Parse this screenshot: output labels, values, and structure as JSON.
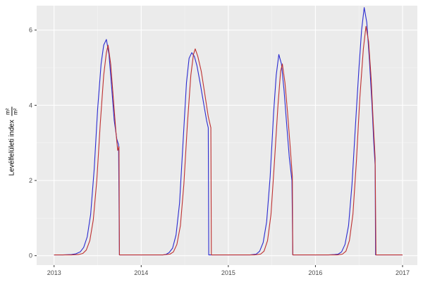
{
  "chart_data": {
    "type": "line",
    "title": "",
    "xlabel": "",
    "ylabel": "Levélfelületi index",
    "ylabel_unit_numerator": "m²",
    "ylabel_unit_denominator": "m²",
    "x_range": [
      2012.8,
      2017.17
    ],
    "y_range": [
      -0.25,
      6.65
    ],
    "x_ticks": [
      "2013",
      "2014",
      "2015",
      "2016",
      "2017"
    ],
    "x_tick_values": [
      2013,
      2014,
      2015,
      2016,
      2017
    ],
    "y_ticks": [
      "0",
      "2",
      "4",
      "6"
    ],
    "y_tick_values": [
      0,
      2,
      4,
      6
    ],
    "x_minor_values": [
      2013.5,
      2014.5,
      2015.5,
      2016.5
    ],
    "y_minor_values": [
      1,
      3,
      5
    ],
    "grid": true,
    "legend": "none",
    "panel_bg": "#EBEBEB",
    "grid_major_color": "#FFFFFF",
    "grid_minor_color": "#F5F5F5",
    "tick_label_color": "#4D4D4D",
    "tick_mark_color": "#333333",
    "series": [
      {
        "name": "series-blue",
        "color": "#2A2AD0",
        "points": [
          [
            2013.0,
            0.02
          ],
          [
            2013.1,
            0.02
          ],
          [
            2013.2,
            0.03
          ],
          [
            2013.25,
            0.05
          ],
          [
            2013.3,
            0.1
          ],
          [
            2013.34,
            0.22
          ],
          [
            2013.38,
            0.5
          ],
          [
            2013.42,
            1.1
          ],
          [
            2013.46,
            2.3
          ],
          [
            2013.5,
            3.9
          ],
          [
            2013.54,
            5.1
          ],
          [
            2013.57,
            5.6
          ],
          [
            2013.6,
            5.75
          ],
          [
            2013.63,
            5.35
          ],
          [
            2013.66,
            4.5
          ],
          [
            2013.69,
            3.6
          ],
          [
            2013.72,
            3.1
          ],
          [
            2013.74,
            2.95
          ],
          [
            2013.75,
            0.02
          ],
          [
            2013.85,
            0.02
          ],
          [
            2013.95,
            0.02
          ],
          [
            2014.05,
            0.02
          ],
          [
            2014.15,
            0.02
          ],
          [
            2014.25,
            0.02
          ],
          [
            2014.28,
            0.03
          ],
          [
            2014.32,
            0.08
          ],
          [
            2014.36,
            0.2
          ],
          [
            2014.4,
            0.55
          ],
          [
            2014.44,
            1.4
          ],
          [
            2014.48,
            3.0
          ],
          [
            2014.52,
            4.6
          ],
          [
            2014.55,
            5.25
          ],
          [
            2014.58,
            5.4
          ],
          [
            2014.61,
            5.3
          ],
          [
            2014.64,
            5.05
          ],
          [
            2014.68,
            4.55
          ],
          [
            2014.72,
            4.0
          ],
          [
            2014.75,
            3.6
          ],
          [
            2014.77,
            3.4
          ],
          [
            2014.775,
            0.02
          ],
          [
            2014.85,
            0.02
          ],
          [
            2014.95,
            0.02
          ],
          [
            2015.05,
            0.02
          ],
          [
            2015.15,
            0.02
          ],
          [
            2015.25,
            0.02
          ],
          [
            2015.32,
            0.04
          ],
          [
            2015.36,
            0.12
          ],
          [
            2015.4,
            0.35
          ],
          [
            2015.44,
            0.9
          ],
          [
            2015.48,
            2.1
          ],
          [
            2015.52,
            3.8
          ],
          [
            2015.55,
            4.8
          ],
          [
            2015.58,
            5.35
          ],
          [
            2015.61,
            5.1
          ],
          [
            2015.64,
            4.4
          ],
          [
            2015.67,
            3.5
          ],
          [
            2015.7,
            2.6
          ],
          [
            2015.73,
            2.0
          ],
          [
            2015.74,
            0.02
          ],
          [
            2015.85,
            0.02
          ],
          [
            2015.95,
            0.02
          ],
          [
            2016.05,
            0.02
          ],
          [
            2016.15,
            0.02
          ],
          [
            2016.22,
            0.03
          ],
          [
            2016.26,
            0.04
          ],
          [
            2016.3,
            0.1
          ],
          [
            2016.34,
            0.3
          ],
          [
            2016.38,
            0.8
          ],
          [
            2016.42,
            1.9
          ],
          [
            2016.46,
            3.5
          ],
          [
            2016.5,
            5.0
          ],
          [
            2016.53,
            6.0
          ],
          [
            2016.56,
            6.6
          ],
          [
            2016.59,
            6.2
          ],
          [
            2016.62,
            5.2
          ],
          [
            2016.65,
            4.0
          ],
          [
            2016.67,
            3.0
          ],
          [
            2016.685,
            2.4
          ],
          [
            2016.69,
            0.02
          ],
          [
            2016.8,
            0.02
          ],
          [
            2016.9,
            0.02
          ],
          [
            2017.0,
            0.02
          ]
        ]
      },
      {
        "name": "series-red",
        "color": "#BE3030",
        "points": [
          [
            2013.0,
            0.02
          ],
          [
            2013.1,
            0.02
          ],
          [
            2013.2,
            0.02
          ],
          [
            2013.28,
            0.03
          ],
          [
            2013.33,
            0.06
          ],
          [
            2013.37,
            0.15
          ],
          [
            2013.41,
            0.4
          ],
          [
            2013.45,
            0.95
          ],
          [
            2013.49,
            2.0
          ],
          [
            2013.53,
            3.5
          ],
          [
            2013.57,
            4.8
          ],
          [
            2013.6,
            5.4
          ],
          [
            2013.62,
            5.6
          ],
          [
            2013.65,
            5.1
          ],
          [
            2013.68,
            4.2
          ],
          [
            2013.71,
            3.3
          ],
          [
            2013.73,
            2.8
          ],
          [
            2013.745,
            2.9
          ],
          [
            2013.75,
            0.02
          ],
          [
            2013.85,
            0.02
          ],
          [
            2013.95,
            0.02
          ],
          [
            2014.05,
            0.02
          ],
          [
            2014.15,
            0.02
          ],
          [
            2014.25,
            0.02
          ],
          [
            2014.33,
            0.04
          ],
          [
            2014.37,
            0.1
          ],
          [
            2014.41,
            0.3
          ],
          [
            2014.45,
            0.8
          ],
          [
            2014.49,
            1.9
          ],
          [
            2014.53,
            3.5
          ],
          [
            2014.57,
            4.8
          ],
          [
            2014.6,
            5.35
          ],
          [
            2014.62,
            5.5
          ],
          [
            2014.65,
            5.3
          ],
          [
            2014.69,
            4.9
          ],
          [
            2014.73,
            4.3
          ],
          [
            2014.77,
            3.7
          ],
          [
            2014.8,
            3.4
          ],
          [
            2014.805,
            0.02
          ],
          [
            2014.9,
            0.02
          ],
          [
            2015.0,
            0.02
          ],
          [
            2015.1,
            0.02
          ],
          [
            2015.2,
            0.02
          ],
          [
            2015.3,
            0.02
          ],
          [
            2015.37,
            0.04
          ],
          [
            2015.41,
            0.12
          ],
          [
            2015.45,
            0.4
          ],
          [
            2015.49,
            1.1
          ],
          [
            2015.53,
            2.5
          ],
          [
            2015.57,
            4.0
          ],
          [
            2015.6,
            4.9
          ],
          [
            2015.62,
            5.1
          ],
          [
            2015.65,
            4.6
          ],
          [
            2015.68,
            3.8
          ],
          [
            2015.71,
            2.9
          ],
          [
            2015.735,
            2.1
          ],
          [
            2015.74,
            0.02
          ],
          [
            2015.85,
            0.02
          ],
          [
            2015.95,
            0.02
          ],
          [
            2016.05,
            0.02
          ],
          [
            2016.15,
            0.02
          ],
          [
            2016.25,
            0.02
          ],
          [
            2016.31,
            0.04
          ],
          [
            2016.35,
            0.12
          ],
          [
            2016.39,
            0.4
          ],
          [
            2016.43,
            1.1
          ],
          [
            2016.47,
            2.5
          ],
          [
            2016.51,
            4.2
          ],
          [
            2016.55,
            5.5
          ],
          [
            2016.58,
            6.1
          ],
          [
            2016.61,
            5.7
          ],
          [
            2016.64,
            4.7
          ],
          [
            2016.66,
            3.7
          ],
          [
            2016.685,
            2.6
          ],
          [
            2016.695,
            0.02
          ],
          [
            2016.8,
            0.02
          ],
          [
            2016.9,
            0.02
          ],
          [
            2017.0,
            0.02
          ]
        ]
      }
    ]
  }
}
